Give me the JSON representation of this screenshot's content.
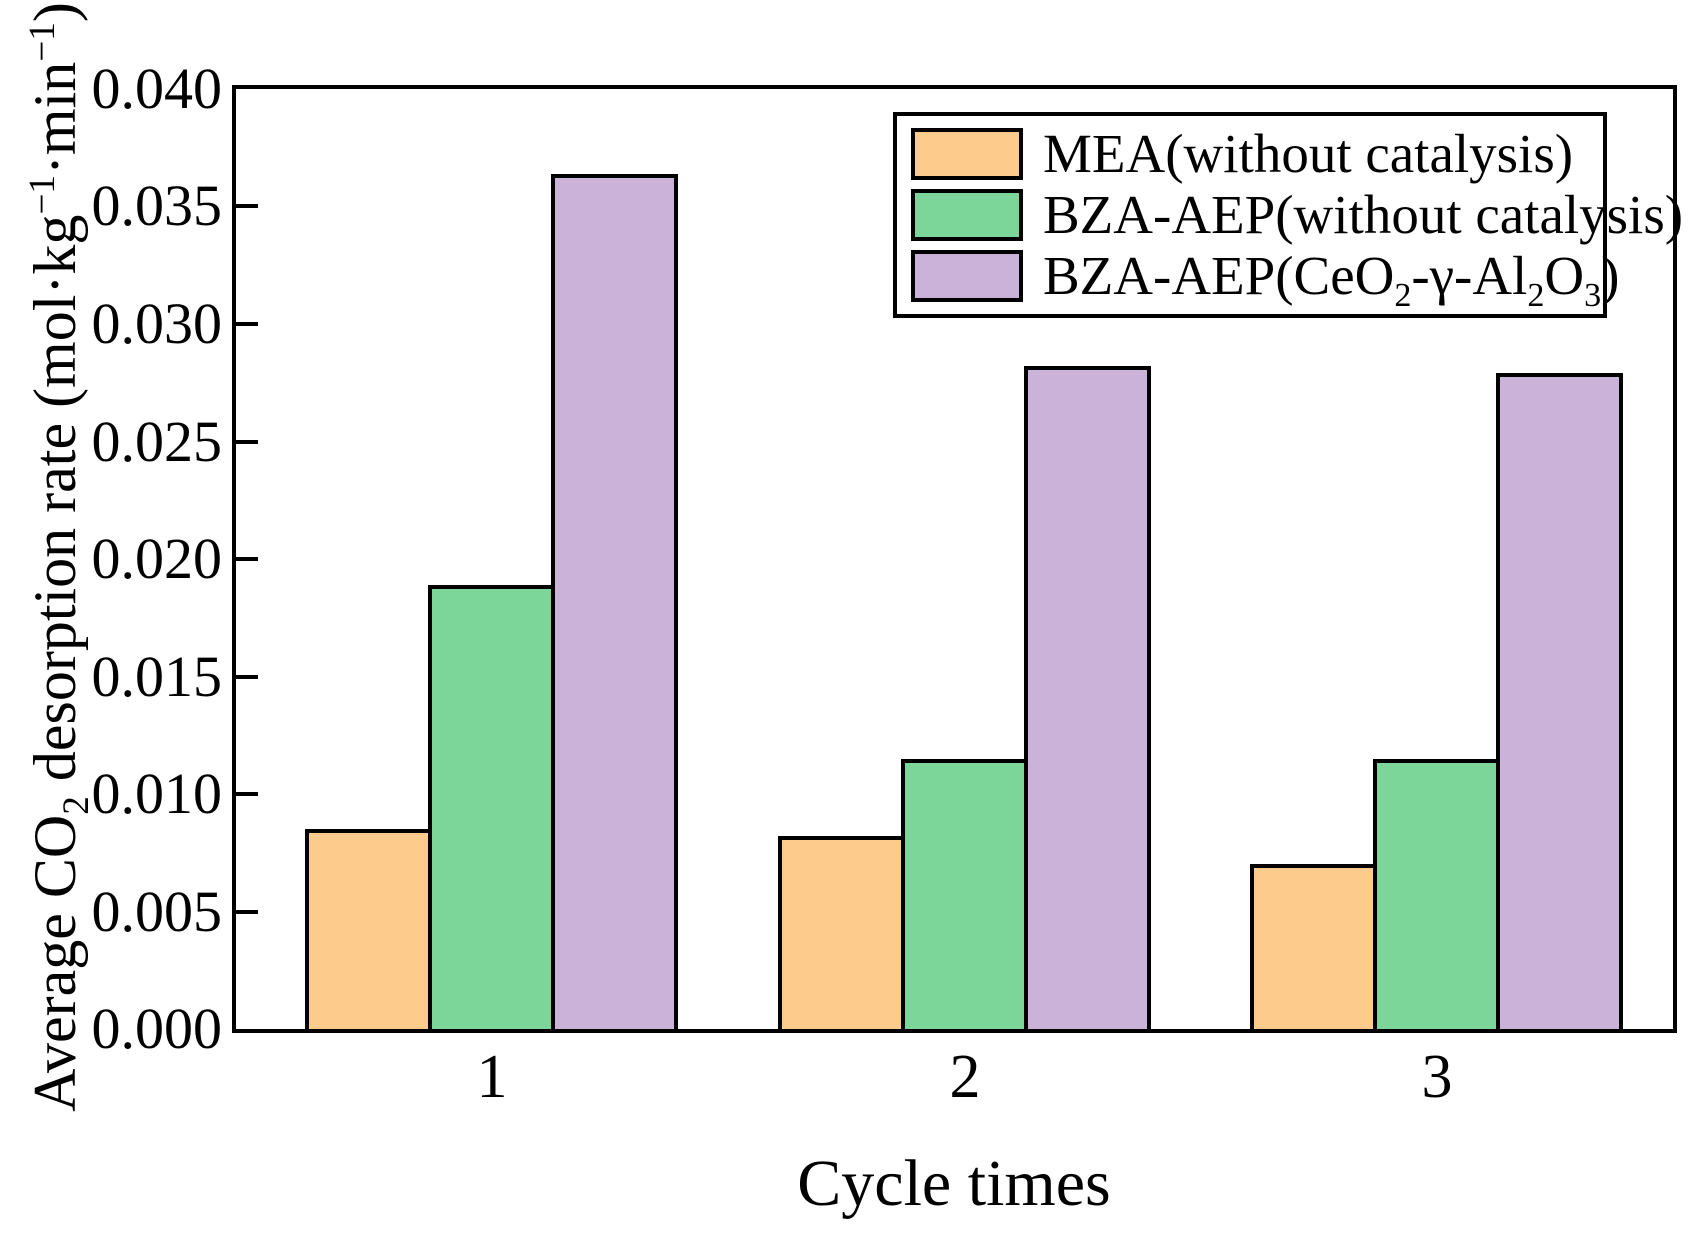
{
  "figure": {
    "background": "#ffffff",
    "frame_color": "#000000",
    "bar_edge_color": "#000000"
  },
  "chart_data": {
    "type": "bar",
    "categories": [
      "1",
      "2",
      "3"
    ],
    "series": [
      {
        "name": "MEA(without catalysis)",
        "color": "#FDCC8D",
        "values": [
          0.0085,
          0.0082,
          0.007
        ],
        "label_rich": [
          {
            "t": "MEA(without catalysis)"
          }
        ]
      },
      {
        "name": "BZA-AEP(without catalysis)",
        "color": "#7CD69A",
        "values": [
          0.0189,
          0.0115,
          0.0115
        ],
        "label_rich": [
          {
            "t": "BZA-AEP(without catalysis)"
          }
        ]
      },
      {
        "name": "BZA-AEP(CeO₂-γ-Al₂O₃)",
        "color": "#CAB2D8",
        "values": [
          0.0364,
          0.0282,
          0.0279
        ],
        "label_rich": [
          {
            "t": "BZA-AEP(CeO"
          },
          {
            "sub": "2"
          },
          {
            "t": "-γ-Al"
          },
          {
            "sub": "2"
          },
          {
            "t": "O"
          },
          {
            "sub": "3"
          },
          {
            "t": ")"
          }
        ]
      }
    ],
    "title": "",
    "xlabel": "Cycle times",
    "ylabel": "Average CO₂ desorption rate (mol·kg⁻¹·min⁻¹)",
    "ylabel_rich": [
      {
        "t": "Average CO"
      },
      {
        "sub": "2"
      },
      {
        "t": " desorption rate (mol·kg"
      },
      {
        "sup": "−1"
      },
      {
        "t": "·min"
      },
      {
        "sup": "−1"
      },
      {
        "t": ")"
      }
    ],
    "ylim": [
      0,
      0.04
    ],
    "ytick_step": 0.005,
    "ytick_labels": [
      "0.000",
      "0.005",
      "0.010",
      "0.015",
      "0.020",
      "0.025",
      "0.030",
      "0.035",
      "0.040"
    ],
    "grid": false,
    "legend_position": "top-right"
  }
}
